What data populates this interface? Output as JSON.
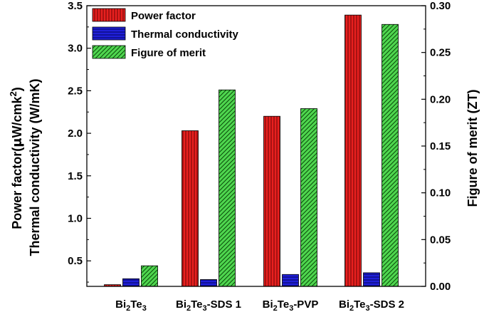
{
  "chart_data": {
    "type": "bar",
    "categories": [
      {
        "base": "Bi",
        "sub1": "2",
        "mid": "Te",
        "sub2": "3",
        "suffix": ""
      },
      {
        "base": "Bi",
        "sub1": "2",
        "mid": "Te",
        "sub2": "3",
        "suffix": "-SDS 1"
      },
      {
        "base": "Bi",
        "sub1": "2",
        "mid": "Te",
        "sub2": "3",
        "suffix": "-PVP"
      },
      {
        "base": "Bi",
        "sub1": "2",
        "mid": "Te",
        "sub2": "3",
        "suffix": "-SDS 2"
      }
    ],
    "series": [
      {
        "name": "Power factor",
        "axis": "left",
        "color": "#e8201f",
        "pattern": "vertical-lines",
        "values": [
          0.22,
          2.03,
          2.2,
          3.39
        ]
      },
      {
        "name": "Thermal conductivity",
        "axis": "left",
        "color": "#2020d8",
        "pattern": "horizontal-lines",
        "values": [
          0.29,
          0.28,
          0.34,
          0.36
        ]
      },
      {
        "name": "Figure of merit",
        "axis": "right",
        "color": "#4fd64f",
        "pattern": "diagonal-lines",
        "values": [
          0.022,
          0.21,
          0.19,
          0.28
        ]
      }
    ],
    "y_left": {
      "label_line1": "Power factor(",
      "label_mu": "μ",
      "label_line1_rest": "W/cmk",
      "label_line1_sup": "2",
      "label_line2": "Thermal conductivity (W/mK)",
      "ylim": [
        0.2,
        3.5
      ],
      "ticks": [
        "0.5",
        "1.0",
        "1.5",
        "2.0",
        "2.5",
        "3.0",
        "3.5"
      ]
    },
    "y_right": {
      "label": "Figure of merit (ZT)",
      "ylim": [
        0.0,
        0.3
      ],
      "ticks": [
        "0.00",
        "0.05",
        "0.10",
        "0.15",
        "0.20",
        "0.25",
        "0.30"
      ]
    },
    "legend_position": "top-left",
    "grid": false
  }
}
